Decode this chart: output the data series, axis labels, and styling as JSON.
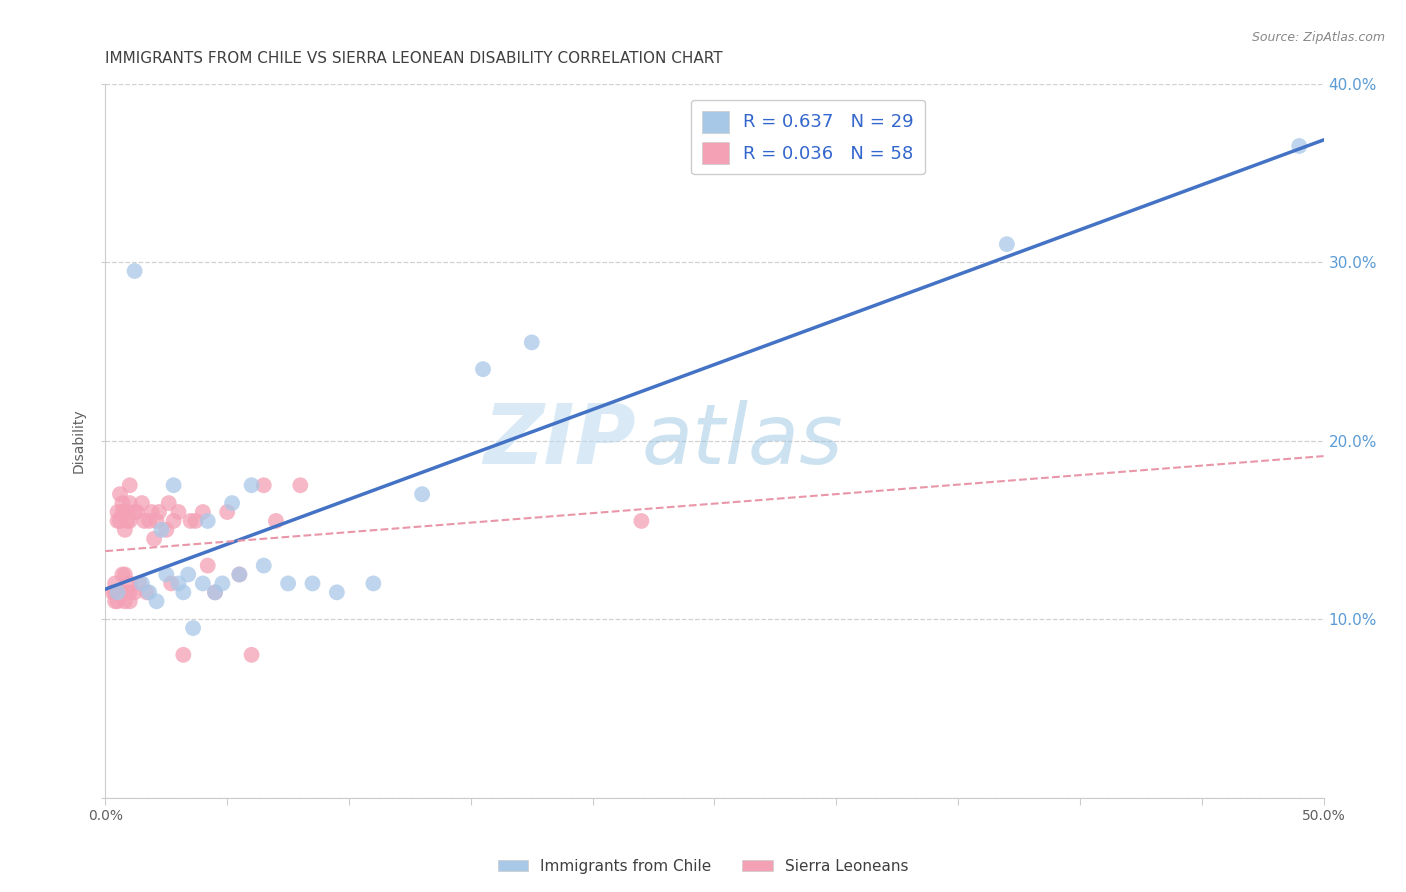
{
  "title": "IMMIGRANTS FROM CHILE VS SIERRA LEONEAN DISABILITY CORRELATION CHART",
  "source": "Source: ZipAtlas.com",
  "ylabel": "Disability",
  "xlim": [
    0,
    0.5
  ],
  "ylim": [
    0,
    0.4
  ],
  "legend1_label": "Immigrants from Chile",
  "legend2_label": "Sierra Leoneans",
  "R_blue": 0.637,
  "N_blue": 29,
  "R_pink": 0.036,
  "N_pink": 58,
  "watermark_zip": "ZIP",
  "watermark_atlas": "atlas",
  "blue_color": "#A8C8E8",
  "pink_color": "#F4A0B5",
  "blue_line_color": "#4472C4",
  "pink_line_color": "#E896A8",
  "title_color": "#404040",
  "source_color": "#888888",
  "left_tick_color": "#606060",
  "right_tick_color": "#5B9BD5",
  "background_color": "#FFFFFF",
  "grid_color": "#CCCCCC",
  "blue_points_x": [
    0.005,
    0.012,
    0.015,
    0.018,
    0.021,
    0.023,
    0.025,
    0.028,
    0.03,
    0.032,
    0.034,
    0.036,
    0.04,
    0.042,
    0.045,
    0.048,
    0.052,
    0.055,
    0.06,
    0.065,
    0.075,
    0.085,
    0.095,
    0.11,
    0.13,
    0.155,
    0.175,
    0.37,
    0.49
  ],
  "blue_points_y": [
    0.115,
    0.295,
    0.12,
    0.115,
    0.11,
    0.15,
    0.125,
    0.175,
    0.12,
    0.115,
    0.125,
    0.095,
    0.12,
    0.155,
    0.115,
    0.12,
    0.165,
    0.125,
    0.175,
    0.13,
    0.12,
    0.12,
    0.115,
    0.12,
    0.17,
    0.24,
    0.255,
    0.31,
    0.365
  ],
  "pink_points_x": [
    0.003,
    0.004,
    0.004,
    0.004,
    0.005,
    0.005,
    0.005,
    0.005,
    0.006,
    0.006,
    0.006,
    0.007,
    0.007,
    0.007,
    0.007,
    0.008,
    0.008,
    0.008,
    0.008,
    0.009,
    0.009,
    0.009,
    0.01,
    0.01,
    0.01,
    0.01,
    0.01,
    0.01,
    0.012,
    0.012,
    0.013,
    0.014,
    0.015,
    0.016,
    0.017,
    0.018,
    0.019,
    0.02,
    0.021,
    0.022,
    0.025,
    0.026,
    0.027,
    0.028,
    0.03,
    0.032,
    0.035,
    0.037,
    0.04,
    0.042,
    0.045,
    0.05,
    0.055,
    0.06,
    0.065,
    0.07,
    0.08,
    0.22
  ],
  "pink_points_y": [
    0.115,
    0.12,
    0.115,
    0.11,
    0.16,
    0.155,
    0.115,
    0.11,
    0.17,
    0.155,
    0.115,
    0.165,
    0.16,
    0.125,
    0.115,
    0.16,
    0.15,
    0.125,
    0.11,
    0.16,
    0.155,
    0.115,
    0.175,
    0.165,
    0.155,
    0.12,
    0.115,
    0.11,
    0.16,
    0.115,
    0.16,
    0.12,
    0.165,
    0.155,
    0.115,
    0.155,
    0.16,
    0.145,
    0.155,
    0.16,
    0.15,
    0.165,
    0.12,
    0.155,
    0.16,
    0.08,
    0.155,
    0.155,
    0.16,
    0.13,
    0.115,
    0.16,
    0.125,
    0.08,
    0.175,
    0.155,
    0.175,
    0.155
  ]
}
